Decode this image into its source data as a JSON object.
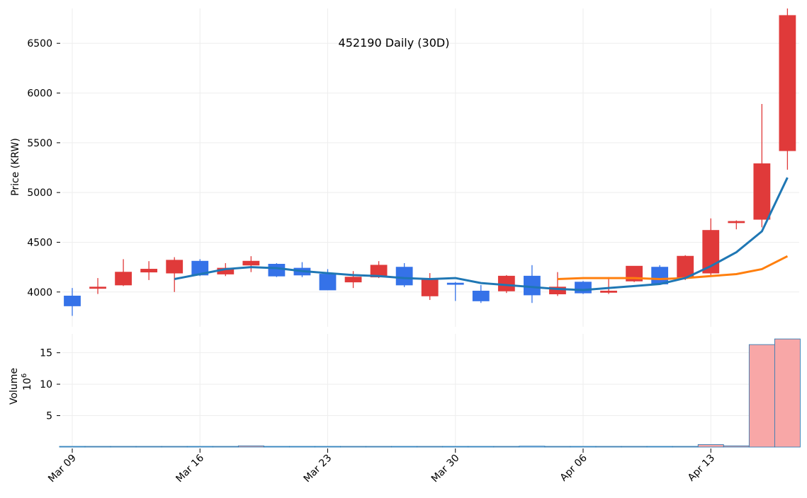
{
  "chart_data": {
    "type": "candlestick",
    "title": "452190 Daily (30D)",
    "ylabel": "Price (KRW)",
    "volume_label": "Volume",
    "volume_exponent_base": "10",
    "volume_exponent": "6",
    "dates": [
      "03-09",
      "03-10",
      "03-11",
      "03-12",
      "03-13",
      "03-16",
      "03-17",
      "03-18",
      "03-19",
      "03-20",
      "03-23",
      "03-24",
      "03-25",
      "03-26",
      "03-27",
      "03-30",
      "03-31",
      "04-01",
      "04-02",
      "04-03",
      "04-06",
      "04-07",
      "04-08",
      "04-09",
      "04-10",
      "04-13",
      "04-14",
      "04-15",
      "04-16"
    ],
    "open": [
      3960,
      4040,
      4070,
      4200,
      4190,
      4310,
      4180,
      4270,
      4280,
      4240,
      4180,
      4100,
      4150,
      4250,
      3960,
      4090,
      4010,
      4010,
      4160,
      3980,
      4100,
      4000,
      4110,
      4250,
      4140,
      4190,
      4700,
      4730,
      5420
    ],
    "high": [
      4040,
      4140,
      4330,
      4310,
      4350,
      4330,
      4290,
      4360,
      4290,
      4300,
      4230,
      4210,
      4310,
      4290,
      4190,
      4100,
      4070,
      4170,
      4270,
      4200,
      4110,
      4150,
      4260,
      4270,
      4370,
      4740,
      4720,
      5890,
      6850
    ],
    "low": [
      3760,
      3980,
      4060,
      4120,
      4000,
      4160,
      4160,
      4200,
      4150,
      4150,
      4020,
      4040,
      4140,
      4050,
      3920,
      3910,
      3890,
      3990,
      3890,
      3960,
      3980,
      3980,
      4100,
      4070,
      4120,
      4170,
      4630,
      4650,
      5230
    ],
    "close": [
      3860,
      4050,
      4200,
      4230,
      4320,
      4170,
      4240,
      4310,
      4160,
      4170,
      4020,
      4150,
      4270,
      4070,
      4130,
      4080,
      3910,
      4160,
      3970,
      4050,
      3990,
      4010,
      4260,
      4080,
      4360,
      4620,
      4710,
      5290,
      6780
    ],
    "ma5": [
      null,
      null,
      null,
      null,
      4130,
      4180,
      4230,
      4250,
      4240,
      4210,
      4190,
      4170,
      4160,
      4140,
      4130,
      4140,
      4090,
      4070,
      4050,
      4030,
      4020,
      4040,
      4060,
      4080,
      4140,
      4260,
      4400,
      4610,
      5150
    ],
    "ma20": [
      null,
      null,
      null,
      null,
      null,
      null,
      null,
      null,
      null,
      null,
      null,
      null,
      null,
      null,
      null,
      null,
      null,
      null,
      null,
      4130,
      4140,
      4140,
      4140,
      4130,
      4140,
      4160,
      4180,
      4230,
      4360
    ],
    "volume": [
      0.05,
      0.05,
      0.1,
      0.02,
      0.02,
      0.05,
      0.02,
      0.2,
      0.02,
      0.02,
      0.02,
      0.02,
      0.02,
      0.03,
      0.02,
      0.02,
      0.02,
      0.02,
      0.15,
      0.02,
      0.02,
      0.02,
      0.1,
      0.02,
      0.05,
      0.4,
      0.2,
      16.3,
      17.2
    ],
    "price_ylim": [
      3650,
      6850
    ],
    "price_ticks": [
      4000,
      4500,
      5000,
      5500,
      6000,
      6500
    ],
    "price_tick_labels": [
      "4000",
      "4500",
      "5000",
      "5500",
      "6000",
      "6500"
    ],
    "volume_ylim": [
      0,
      18
    ],
    "volume_ticks": [
      5,
      10,
      15
    ],
    "volume_tick_labels": [
      "5",
      "10",
      "15"
    ],
    "x_ticks": [
      {
        "date": "03-09",
        "label": "Mar 09"
      },
      {
        "date": "03-16",
        "label": "Mar 16"
      },
      {
        "date": "03-23",
        "label": "Mar 23"
      },
      {
        "date": "03-30",
        "label": "Mar 30"
      },
      {
        "date": "04-06",
        "label": "Apr 06"
      },
      {
        "date": "04-13",
        "label": "Apr 13"
      }
    ],
    "grid": true,
    "colors": {
      "up": "#e03a3a",
      "down": "#3572e8",
      "ma5": "#1f77b4",
      "ma20": "#ff7f0e",
      "volume_up": "#f8a7a7",
      "volume_down": "#a9c2f2",
      "volume_edge": "#1f77b4",
      "grid": "#eeeeee"
    }
  }
}
